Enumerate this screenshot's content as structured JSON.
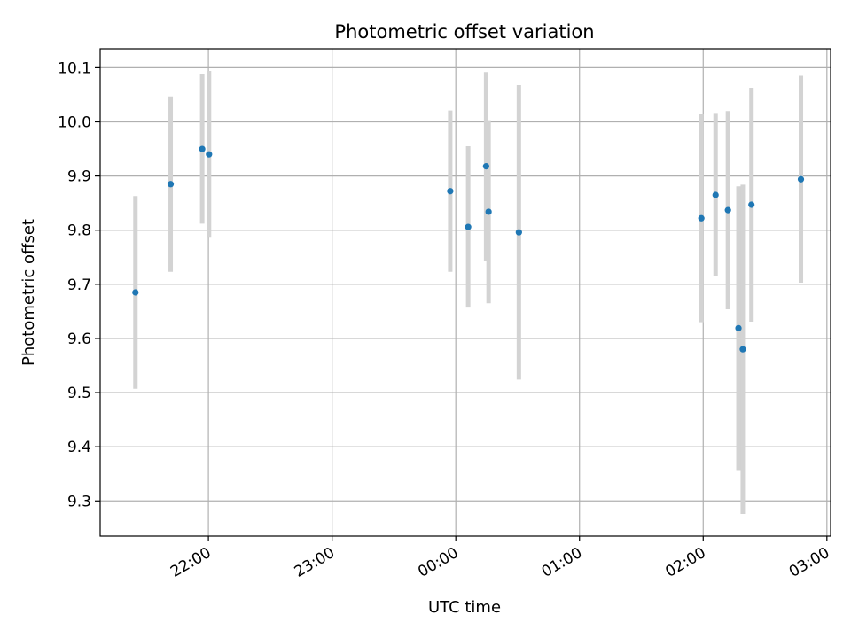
{
  "chart_data": {
    "type": "scatter",
    "title": "Photometric offset variation",
    "xlabel": "UTC time",
    "ylabel": "Photometric offset",
    "grid": true,
    "x_unit": "UTC hours since 00:00 on first day (negative = previous day)",
    "xlim": [
      -2.875,
      3.03
    ],
    "ylim": [
      9.235,
      10.135
    ],
    "x_ticks": [
      {
        "value": -2.0,
        "label": "22:00"
      },
      {
        "value": -1.0,
        "label": "23:00"
      },
      {
        "value": 0.0,
        "label": "00:00"
      },
      {
        "value": 1.0,
        "label": "01:00"
      },
      {
        "value": 2.0,
        "label": "02:00"
      },
      {
        "value": 3.0,
        "label": "03:00"
      }
    ],
    "y_ticks": [
      {
        "value": 9.3,
        "label": "9.3"
      },
      {
        "value": 9.4,
        "label": "9.4"
      },
      {
        "value": 9.5,
        "label": "9.5"
      },
      {
        "value": 9.6,
        "label": "9.6"
      },
      {
        "value": 9.7,
        "label": "9.7"
      },
      {
        "value": 9.8,
        "label": "9.8"
      },
      {
        "value": 9.9,
        "label": "9.9"
      },
      {
        "value": 10.0,
        "label": "10.0"
      },
      {
        "value": 10.1,
        "label": "10.1"
      }
    ],
    "colors": {
      "point": "#1f77b4",
      "errorbar": "#d3d3d3",
      "grid": "#b0b0b0",
      "axes": "#000000"
    },
    "points": [
      {
        "x": -2.59,
        "y": 9.685,
        "err": 0.178
      },
      {
        "x": -2.305,
        "y": 9.885,
        "err": 0.162
      },
      {
        "x": -2.05,
        "y": 9.95,
        "err": 0.138
      },
      {
        "x": -1.995,
        "y": 9.94,
        "err": 0.154
      },
      {
        "x": -0.045,
        "y": 9.872,
        "err": 0.149
      },
      {
        "x": 0.1,
        "y": 9.806,
        "err": 0.149
      },
      {
        "x": 0.245,
        "y": 9.918,
        "err": 0.174
      },
      {
        "x": 0.265,
        "y": 9.834,
        "err": 0.169
      },
      {
        "x": 0.51,
        "y": 9.796,
        "err": 0.272
      },
      {
        "x": 1.985,
        "y": 9.822,
        "err": 0.192
      },
      {
        "x": 2.1,
        "y": 9.865,
        "err": 0.15
      },
      {
        "x": 2.2,
        "y": 9.837,
        "err": 0.183
      },
      {
        "x": 2.285,
        "y": 9.619,
        "err": 0.262
      },
      {
        "x": 2.32,
        "y": 9.58,
        "err": 0.304
      },
      {
        "x": 2.39,
        "y": 9.847,
        "err": 0.216
      },
      {
        "x": 2.79,
        "y": 9.894,
        "err": 0.191
      }
    ]
  }
}
